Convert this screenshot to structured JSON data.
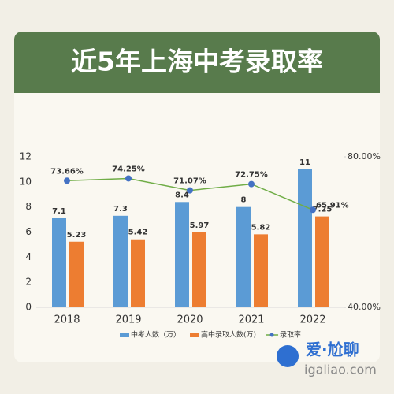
{
  "chart_data": {
    "type": "bar_line",
    "title": "近5年上海中考录取率",
    "categories": [
      "2018",
      "2019",
      "2020",
      "2021",
      "2022"
    ],
    "series": [
      {
        "name": "中考人数（万）",
        "color": "#5b9bd5",
        "values": [
          7.1,
          7.3,
          8.4,
          8,
          11
        ]
      },
      {
        "name": "高中录取人数(万)",
        "color": "#ed7d31",
        "values": [
          5.23,
          5.42,
          5.97,
          5.82,
          7.25
        ]
      },
      {
        "name": "录取率",
        "color": "#70ad47",
        "axis": "y2",
        "values": [
          73.66,
          74.25,
          71.07,
          72.75,
          65.91
        ],
        "value_labels": [
          "73.66%",
          "74.25%",
          "71.07%",
          "72.75%",
          "65.91%"
        ]
      }
    ],
    "ylim": [
      0,
      12
    ],
    "yticks": [
      0,
      2,
      4,
      6,
      8,
      10,
      12
    ],
    "y2lim": [
      40,
      80
    ],
    "y2ticks": [
      {
        "value": 40,
        "label": "40.00%"
      },
      {
        "value": 80,
        "label": "80.00%"
      }
    ],
    "grid": false,
    "legend": "bottom"
  },
  "watermark": {
    "brand": "爱·尬聊",
    "site": "igaliao.com"
  }
}
